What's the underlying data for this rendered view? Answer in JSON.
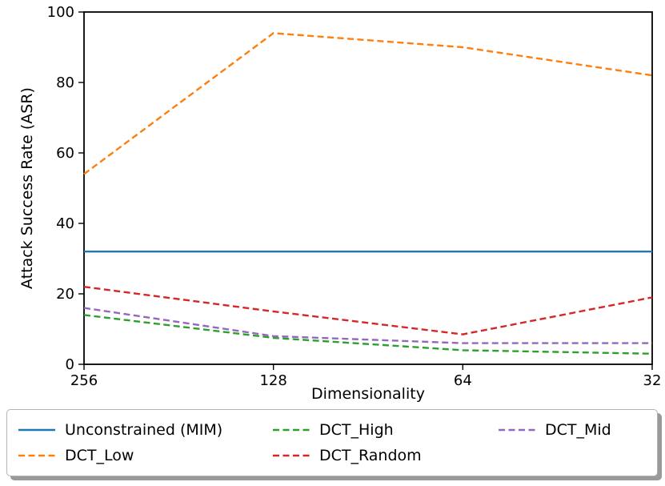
{
  "figure": {
    "background": "#ffffff",
    "frame_color": "#000000"
  },
  "chart_data": {
    "type": "line",
    "title": "",
    "xlabel": "Dimensionality",
    "ylabel": "Attack Success Rate (ASR)",
    "x_tick_labels": [
      "256",
      "128",
      "64",
      "32"
    ],
    "y_ticks": [
      0,
      20,
      40,
      60,
      80,
      100
    ],
    "ylim": [
      0,
      100
    ],
    "grid": false,
    "legend_position": "bottom",
    "series": [
      {
        "name": "Unconstrained (MIM)",
        "color": "#1f77b4",
        "style": "solid",
        "values": [
          32,
          32,
          32,
          32
        ]
      },
      {
        "name": "DCT_Low",
        "color": "#ff7f0e",
        "style": "dashed",
        "values": [
          54,
          94,
          90,
          82
        ]
      },
      {
        "name": "DCT_High",
        "color": "#2ca02c",
        "style": "dashed",
        "values": [
          14,
          7.5,
          4,
          3
        ]
      },
      {
        "name": "DCT_Random",
        "color": "#d62728",
        "style": "dashed",
        "values": [
          22,
          15,
          8.5,
          19
        ]
      },
      {
        "name": "DCT_Mid",
        "color": "#9467bd",
        "style": "dashed",
        "values": [
          16,
          8,
          6,
          6
        ]
      }
    ],
    "legend_columns": [
      [
        "Unconstrained (MIM)",
        "DCT_Low"
      ],
      [
        "DCT_High",
        "DCT_Random"
      ],
      [
        "DCT_Mid"
      ]
    ]
  }
}
